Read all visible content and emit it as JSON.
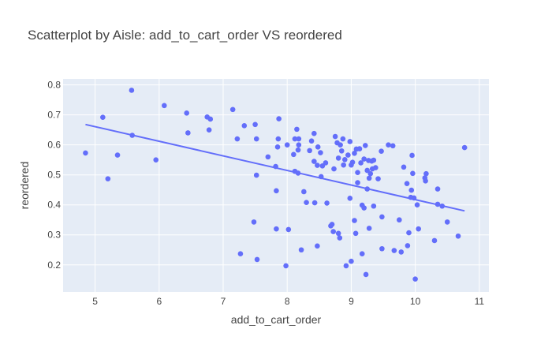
{
  "chart_data": {
    "type": "scatter",
    "title": "Scatterplot by Aisle: add_to_cart_order VS reordered",
    "xlabel": "add_to_cart_order",
    "ylabel": "reordered",
    "xlim": [
      4.5,
      11.15
    ],
    "ylim": [
      0.11,
      0.82
    ],
    "xticks": [
      5,
      6,
      7,
      8,
      9,
      10,
      11
    ],
    "yticks": [
      0.2,
      0.3,
      0.4,
      0.5,
      0.6,
      0.7,
      0.8
    ],
    "grid": true,
    "legend": "none",
    "colors": {
      "marker": "#636efa",
      "line": "#636efa",
      "plot_bg": "#e5ecf6",
      "grid": "#ffffff"
    },
    "trendline": {
      "x": [
        4.85,
        10.77
      ],
      "y": [
        0.668,
        0.38
      ]
    },
    "points": [
      [
        4.85,
        0.573
      ],
      [
        5.12,
        0.692
      ],
      [
        5.2,
        0.487
      ],
      [
        5.35,
        0.566
      ],
      [
        5.57,
        0.782
      ],
      [
        5.58,
        0.632
      ],
      [
        5.95,
        0.55
      ],
      [
        6.08,
        0.731
      ],
      [
        6.43,
        0.706
      ],
      [
        6.45,
        0.64
      ],
      [
        6.75,
        0.693
      ],
      [
        6.78,
        0.65
      ],
      [
        6.8,
        0.686
      ],
      [
        7.15,
        0.718
      ],
      [
        7.22,
        0.62
      ],
      [
        7.27,
        0.237
      ],
      [
        7.33,
        0.664
      ],
      [
        7.48,
        0.343
      ],
      [
        7.5,
        0.668
      ],
      [
        7.52,
        0.62
      ],
      [
        7.52,
        0.499
      ],
      [
        7.53,
        0.218
      ],
      [
        7.7,
        0.56
      ],
      [
        7.82,
        0.528
      ],
      [
        7.83,
        0.447
      ],
      [
        7.83,
        0.32
      ],
      [
        7.85,
        0.593
      ],
      [
        7.86,
        0.62
      ],
      [
        7.87,
        0.687
      ],
      [
        7.98,
        0.197
      ],
      [
        8.0,
        0.6
      ],
      [
        8.02,
        0.318
      ],
      [
        8.1,
        0.568
      ],
      [
        8.12,
        0.62
      ],
      [
        8.12,
        0.512
      ],
      [
        8.15,
        0.652
      ],
      [
        8.17,
        0.583
      ],
      [
        8.18,
        0.6
      ],
      [
        8.18,
        0.62
      ],
      [
        8.17,
        0.506
      ],
      [
        8.22,
        0.25
      ],
      [
        8.26,
        0.444
      ],
      [
        8.3,
        0.408
      ],
      [
        8.35,
        0.581
      ],
      [
        8.38,
        0.613
      ],
      [
        8.42,
        0.638
      ],
      [
        8.42,
        0.545
      ],
      [
        8.43,
        0.407
      ],
      [
        8.47,
        0.532
      ],
      [
        8.47,
        0.263
      ],
      [
        8.48,
        0.593
      ],
      [
        8.52,
        0.574
      ],
      [
        8.53,
        0.494
      ],
      [
        8.55,
        0.53
      ],
      [
        8.6,
        0.54
      ],
      [
        8.62,
        0.406
      ],
      [
        8.68,
        0.33
      ],
      [
        8.7,
        0.335
      ],
      [
        8.72,
        0.311
      ],
      [
        8.73,
        0.52
      ],
      [
        8.75,
        0.628
      ],
      [
        8.78,
        0.607
      ],
      [
        8.8,
        0.556
      ],
      [
        8.8,
        0.305
      ],
      [
        8.82,
        0.29
      ],
      [
        8.83,
        0.6
      ],
      [
        8.85,
        0.58
      ],
      [
        8.87,
        0.62
      ],
      [
        8.88,
        0.533
      ],
      [
        8.9,
        0.551
      ],
      [
        8.92,
        0.197
      ],
      [
        8.95,
        0.566
      ],
      [
        8.98,
        0.611
      ],
      [
        8.98,
        0.422
      ],
      [
        9.0,
        0.533
      ],
      [
        9.0,
        0.212
      ],
      [
        9.02,
        0.542
      ],
      [
        9.05,
        0.572
      ],
      [
        9.05,
        0.348
      ],
      [
        9.07,
        0.305
      ],
      [
        9.08,
        0.586
      ],
      [
        9.1,
        0.508
      ],
      [
        9.1,
        0.474
      ],
      [
        9.13,
        0.587
      ],
      [
        9.15,
        0.54
      ],
      [
        9.17,
        0.399
      ],
      [
        9.17,
        0.237
      ],
      [
        9.2,
        0.39
      ],
      [
        9.2,
        0.553
      ],
      [
        9.22,
        0.598
      ],
      [
        9.23,
        0.168
      ],
      [
        9.25,
        0.515
      ],
      [
        9.25,
        0.453
      ],
      [
        9.27,
        0.548
      ],
      [
        9.28,
        0.489
      ],
      [
        9.28,
        0.322
      ],
      [
        9.3,
        0.504
      ],
      [
        9.32,
        0.546
      ],
      [
        9.33,
        0.52
      ],
      [
        9.35,
        0.549
      ],
      [
        9.35,
        0.396
      ],
      [
        9.38,
        0.524
      ],
      [
        9.42,
        0.487
      ],
      [
        9.47,
        0.579
      ],
      [
        9.48,
        0.36
      ],
      [
        9.48,
        0.254
      ],
      [
        9.58,
        0.6
      ],
      [
        9.65,
        0.597
      ],
      [
        9.67,
        0.248
      ],
      [
        9.75,
        0.35
      ],
      [
        9.78,
        0.243
      ],
      [
        9.82,
        0.526
      ],
      [
        9.87,
        0.471
      ],
      [
        9.88,
        0.264
      ],
      [
        9.9,
        0.307
      ],
      [
        9.93,
        0.425
      ],
      [
        9.94,
        0.449
      ],
      [
        9.95,
        0.565
      ],
      [
        9.96,
        0.505
      ],
      [
        9.98,
        0.423
      ],
      [
        10.0,
        0.153
      ],
      [
        10.03,
        0.4
      ],
      [
        10.05,
        0.32
      ],
      [
        10.15,
        0.49
      ],
      [
        10.16,
        0.48
      ],
      [
        10.17,
        0.504
      ],
      [
        10.3,
        0.281
      ],
      [
        10.35,
        0.453
      ],
      [
        10.35,
        0.402
      ],
      [
        10.42,
        0.396
      ],
      [
        10.5,
        0.343
      ],
      [
        10.67,
        0.296
      ],
      [
        10.77,
        0.591
      ]
    ]
  }
}
